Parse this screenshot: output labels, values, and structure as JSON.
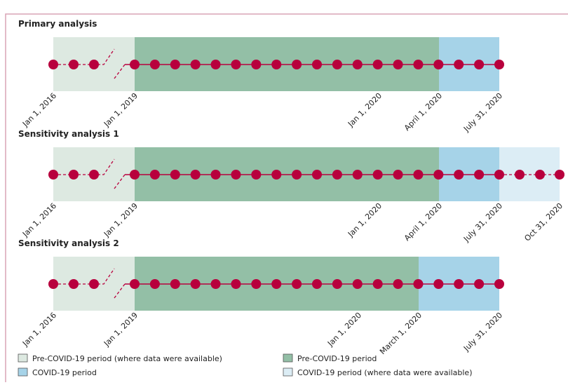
{
  "panels": [
    {
      "title": "Primary analysis",
      "labels": [
        "Jan 1, 2016",
        "Jan 1, 2019",
        "Jan 1, 2020",
        "April 1, 2020",
        "July 31, 2020"
      ]
    },
    {
      "title": "Sensitivity analysis 1",
      "labels": [
        "Jan 1, 2016",
        "Jan 1, 2019",
        "Jan 1, 2020",
        "April 1, 2020",
        "July 31, 2020",
        "Oct 31, 2020"
      ]
    },
    {
      "title": "Sensitivity analysis 2",
      "labels": [
        "Jan 1, 2016",
        "Jan 1, 2019",
        "Jan 1, 2020",
        "March 1, 2020",
        "July 31, 2020"
      ]
    }
  ],
  "legend": [
    "Pre-COVID-19 period (where data were available)",
    "Pre-COVID-19 period",
    "COVID-19 period",
    "COVID-19 period (where data were available)"
  ]
}
